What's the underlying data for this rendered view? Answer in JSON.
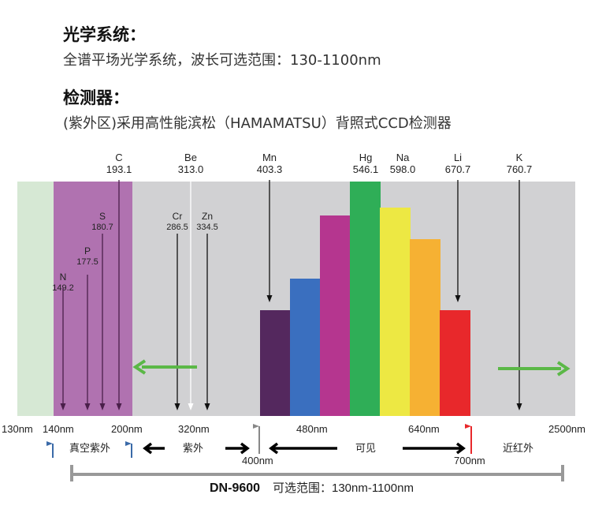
{
  "optics": {
    "heading": "光学系统：",
    "text": "全谱平场光学系统，波长可选范围：130-1100nm"
  },
  "detector": {
    "heading": "检测器：",
    "text": "(紫外区)采用高性能滨松（HAMAMATSU）背照式CCD检测器"
  },
  "elements": [
    {
      "name": "N",
      "wl": "149.2",
      "color": "#4a1f4a"
    },
    {
      "name": "P",
      "wl": "177.5",
      "color": "#4a1f4a"
    },
    {
      "name": "S",
      "wl": "180.7",
      "color": "#4a1f4a"
    },
    {
      "name": "C",
      "wl": "193.1",
      "color": "#4a1f4a"
    },
    {
      "name": "Cr",
      "wl": "286.5",
      "color": "#111111"
    },
    {
      "name": "Be",
      "wl": "313.0",
      "color": "#ffffff"
    },
    {
      "name": "Zn",
      "wl": "334.5",
      "color": "#111111"
    },
    {
      "name": "Mn",
      "wl": "403.3",
      "color": "#111111"
    },
    {
      "name": "Hg",
      "wl": "546.1",
      "color": "#111111"
    },
    {
      "name": "Na",
      "wl": "598.0",
      "color": "#111111"
    },
    {
      "name": "Li",
      "wl": "670.7",
      "color": "#111111"
    },
    {
      "name": "K",
      "wl": "760.7",
      "color": "#111111"
    }
  ],
  "bar_colors": [
    "#54285e",
    "#3a6fbf",
    "#b5368f",
    "#2fae57",
    "#ede843",
    "#f6b133",
    "#e8282b"
  ],
  "region_colors": {
    "vacuum_uv_edge": "#d6e8d4",
    "vacuum_uv": "#b072b0",
    "background": "#d1d1d3",
    "arrow": "#5bb847"
  },
  "axis_ticks": [
    "130nm",
    "140nm",
    "200nm",
    "320nm",
    "480nm",
    "640nm",
    "2500nm"
  ],
  "markers": {
    "m400": "400nm",
    "m700": "700nm"
  },
  "regions": {
    "vuv": "真空紫外",
    "uv": "紫外",
    "vis": "可见",
    "nir": "近红外"
  },
  "range": {
    "model": "DN-9600",
    "text": "可选范围：130nm-1100nm"
  }
}
